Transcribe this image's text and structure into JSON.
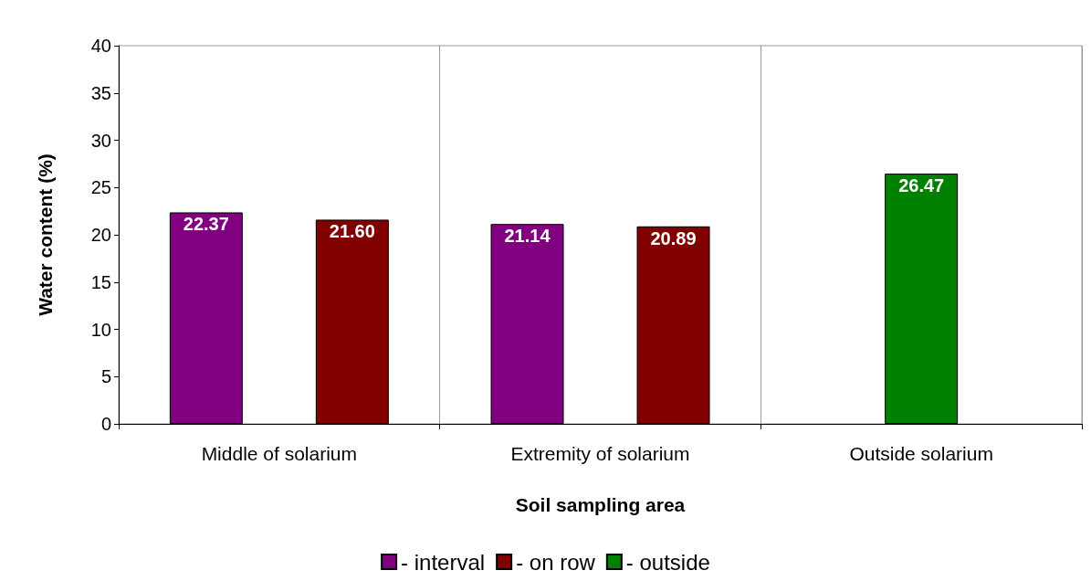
{
  "chart_data": {
    "type": "bar",
    "xlabel": "Soil sampling area",
    "ylabel": "Water content (%)",
    "categories": [
      "Middle of solarium",
      "Extremity of solarium",
      "Outside solarium"
    ],
    "series": [
      {
        "name": "- interval",
        "color": "#800080",
        "values": [
          22.37,
          21.14,
          null
        ],
        "value_labels": [
          "22.37",
          "21.14",
          null
        ]
      },
      {
        "name": "- on row",
        "color": "#800000",
        "values": [
          21.6,
          20.89,
          null
        ],
        "value_labels": [
          "21.60",
          "20.89",
          null
        ]
      },
      {
        "name": "- outside",
        "color": "#008000",
        "values": [
          null,
          null,
          26.47
        ],
        "value_labels": [
          null,
          null,
          "26.47"
        ]
      }
    ],
    "ylim": [
      0,
      40
    ],
    "yticks": [
      0,
      5,
      10,
      15,
      20,
      25,
      30,
      35,
      40
    ],
    "grid": "x",
    "legend": "bottom"
  }
}
